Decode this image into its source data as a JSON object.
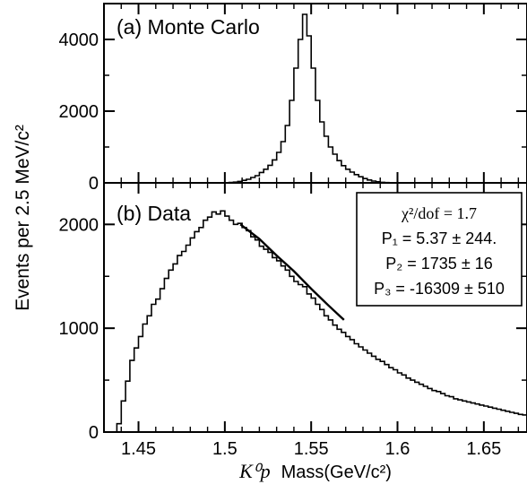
{
  "ylabel": "Events per 2.5 MeV/c²",
  "xlabel_italic": "K⁰p",
  "xlabel_rest": "Mass(GeV/c²)",
  "panels": {
    "top": {
      "label": "(a) Monte Carlo"
    },
    "bottom": {
      "label": "(b) Data",
      "fit_box": {
        "line1": "χ²/dof  =  1.7",
        "line2": "P₁ = 5.37 ± 244.",
        "line3": "P₂ = 1735 ± 16",
        "line4": "P₃ = -16309 ± 510"
      }
    }
  },
  "chart_data": [
    {
      "type": "histogram",
      "title": "(a) Monte Carlo",
      "xlim": [
        1.43,
        1.675
      ],
      "ylim": [
        0,
        5000
      ],
      "yticks": [
        0,
        2000,
        4000
      ],
      "bin_width": 0.0025,
      "x_start": 1.43,
      "values": [
        0,
        0,
        0,
        0,
        0,
        0,
        0,
        0,
        0,
        0,
        0,
        0,
        0,
        0,
        0,
        0,
        0,
        0,
        0,
        0,
        0,
        0,
        0,
        0,
        0,
        0,
        0,
        0,
        0,
        10,
        20,
        40,
        70,
        100,
        150,
        200,
        290,
        380,
        490,
        640,
        850,
        1150,
        1600,
        2300,
        3200,
        4000,
        4700,
        4100,
        3200,
        2300,
        1700,
        1300,
        1000,
        800,
        620,
        480,
        380,
        300,
        230,
        170,
        120,
        80,
        50,
        30,
        15,
        8,
        4,
        2,
        0,
        0,
        0,
        0,
        0,
        0,
        0,
        0,
        0,
        0,
        0,
        0,
        0,
        0,
        0,
        0,
        0,
        0,
        0,
        0,
        0,
        0,
        0,
        0,
        0,
        0,
        0,
        0,
        0,
        0
      ]
    },
    {
      "type": "histogram",
      "title": "(b) Data",
      "xlim": [
        1.43,
        1.675
      ],
      "ylim": [
        0,
        2400
      ],
      "yticks": [
        0,
        1000,
        2000
      ],
      "bin_width": 0.0025,
      "x_start": 1.43,
      "values": [
        0,
        0,
        0,
        80,
        300,
        490,
        690,
        810,
        920,
        1040,
        1120,
        1230,
        1280,
        1380,
        1480,
        1560,
        1620,
        1700,
        1740,
        1800,
        1870,
        1930,
        1970,
        2040,
        2070,
        2120,
        2100,
        2130,
        2080,
        2040,
        2000,
        2010,
        1970,
        1940,
        1880,
        1850,
        1790,
        1760,
        1730,
        1680,
        1650,
        1600,
        1560,
        1500,
        1450,
        1420,
        1400,
        1330,
        1290,
        1230,
        1180,
        1120,
        1080,
        1030,
        990,
        960,
        920,
        890,
        850,
        820,
        790,
        760,
        730,
        700,
        680,
        650,
        620,
        600,
        570,
        550,
        520,
        500,
        480,
        460,
        440,
        420,
        400,
        390,
        370,
        350,
        340,
        320,
        310,
        300,
        290,
        280,
        270,
        260,
        250,
        240,
        230,
        220,
        210,
        200,
        190,
        180,
        170,
        165,
        160
      ],
      "fit": {
        "x": [
          1.509,
          1.52,
          1.53,
          1.54,
          1.55,
          1.56,
          1.569
        ],
        "y": [
          2000,
          1860,
          1700,
          1550,
          1380,
          1220,
          1080
        ]
      }
    }
  ],
  "xticks": [
    1.45,
    1.5,
    1.55,
    1.6,
    1.65
  ],
  "xtick_labels": [
    "1.45",
    "1.5",
    "1.55",
    "1.6",
    "1.65"
  ]
}
